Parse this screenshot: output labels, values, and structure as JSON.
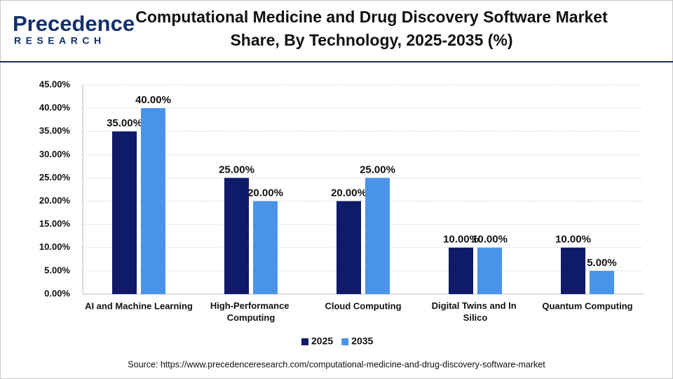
{
  "logo": {
    "name": "Precedence",
    "tagline": "RESEARCH"
  },
  "chart_data": {
    "type": "bar",
    "title": "Computational Medicine and Drug Discovery Software Market Share, By Technology, 2025-2035 (%)",
    "categories": [
      "AI and Machine Learning",
      "High-Performance Computing",
      "Cloud Computing",
      "Digital Twins and In Silico",
      "Quantum Computing"
    ],
    "series": [
      {
        "name": "2025",
        "color": "#0f1a68",
        "values": [
          35,
          25,
          20,
          10,
          10
        ],
        "value_labels": [
          "35.00%",
          "25.00%",
          "20.00%",
          "10.00%",
          "10.00%"
        ]
      },
      {
        "name": "2035",
        "color": "#4a93ea",
        "values": [
          40,
          20,
          25,
          10,
          5
        ],
        "value_labels": [
          "40.00%",
          "20.00%",
          "25.00%",
          "10.00%",
          "5.00%"
        ]
      }
    ],
    "ylim": [
      0,
      45
    ],
    "yticks": [
      {
        "value": 0,
        "label": "0.00%"
      },
      {
        "value": 5,
        "label": "5.00%"
      },
      {
        "value": 10,
        "label": "10.00%"
      },
      {
        "value": 15,
        "label": "15.00%"
      },
      {
        "value": 20,
        "label": "20.00%"
      },
      {
        "value": 25,
        "label": "25.00%"
      },
      {
        "value": 30,
        "label": "30.00%"
      },
      {
        "value": 35,
        "label": "35.00%"
      },
      {
        "value": 40,
        "label": "40.00%"
      },
      {
        "value": 45,
        "label": "45.00%"
      }
    ],
    "grid": true,
    "legend": "bottom",
    "source": "Source: https://www.precedenceresearch.com/computational-medicine-and-drug-discovery-software-market"
  }
}
